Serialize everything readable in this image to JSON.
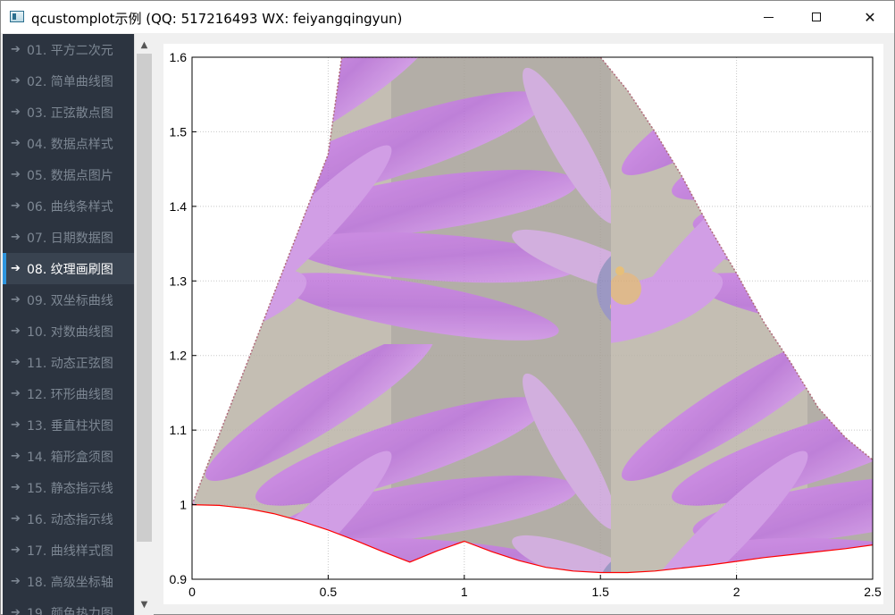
{
  "window": {
    "title": "qcustomplot示例 (QQ: 517216493 WX: feiyangqingyun)",
    "minimize_icon": "minimize-icon",
    "maximize_icon": "maximize-icon",
    "close_icon": "close-icon",
    "close_glyph": "✕"
  },
  "sidebar": {
    "arrow_glyph": "➔",
    "active_index": 7,
    "items": [
      {
        "label": "01. 平方二次元"
      },
      {
        "label": "02. 简单曲线图"
      },
      {
        "label": "03. 正弦散点图"
      },
      {
        "label": "04. 数据点样式"
      },
      {
        "label": "05. 数据点图片"
      },
      {
        "label": "06. 曲线条样式"
      },
      {
        "label": "07. 日期数据图"
      },
      {
        "label": "08. 纹理画刷图"
      },
      {
        "label": "09. 双坐标曲线"
      },
      {
        "label": "10. 对数曲线图"
      },
      {
        "label": "11. 动态正弦图"
      },
      {
        "label": "12. 环形曲线图"
      },
      {
        "label": "13. 垂直柱状图"
      },
      {
        "label": "14. 箱形盒须图"
      },
      {
        "label": "15. 静态指示线"
      },
      {
        "label": "16. 动态指示线"
      },
      {
        "label": "17. 曲线样式图"
      },
      {
        "label": "18. 高级坐标轴"
      },
      {
        "label": "19. 颜色热力图"
      }
    ]
  },
  "scrollbar": {
    "up_glyph": "▲",
    "down_glyph": "▼"
  },
  "chart_data": {
    "type": "area",
    "xlim": [
      0,
      2.5
    ],
    "ylim": [
      0.9,
      1.6
    ],
    "x_ticks": [
      "0",
      "0.5",
      "1",
      "1.5",
      "2",
      "2.5"
    ],
    "y_ticks": [
      "0.9",
      "1",
      "1.1",
      "1.2",
      "1.3",
      "1.4",
      "1.5",
      "1.6"
    ],
    "grid": true,
    "fill": "texture-brush",
    "series": [
      {
        "color": "#ff0000",
        "x": [
          0,
          0.1,
          0.2,
          0.3,
          0.4,
          0.5,
          0.6,
          0.7,
          0.8,
          0.9,
          1.0,
          1.1,
          1.2,
          1.3,
          1.4,
          1.5,
          1.6,
          1.7,
          1.8,
          1.9,
          2.0,
          2.1,
          2.2,
          2.3,
          2.4,
          2.5
        ],
        "y": [
          1.0,
          0.999,
          0.995,
          0.988,
          0.978,
          0.966,
          0.952,
          0.937,
          0.923,
          0.938,
          0.951,
          0.937,
          0.925,
          0.916,
          0.911,
          0.909,
          0.909,
          0.911,
          0.915,
          0.919,
          0.924,
          0.929,
          0.933,
          0.937,
          0.941,
          0.946
        ]
      },
      {
        "color": "#b06a7a",
        "x": [
          0,
          0.05,
          0.1,
          0.15,
          0.2,
          0.25,
          0.3,
          0.35,
          0.4,
          0.45,
          0.5,
          0.55,
          1.5,
          1.6,
          1.7,
          1.8,
          1.9,
          2.0,
          2.1,
          2.2,
          2.3,
          2.4,
          2.5
        ],
        "y": [
          1.0,
          1.047,
          1.094,
          1.141,
          1.188,
          1.235,
          1.282,
          1.329,
          1.376,
          1.423,
          1.47,
          1.6,
          1.6,
          1.555,
          1.5,
          1.44,
          1.372,
          1.31,
          1.245,
          1.19,
          1.13,
          1.09,
          1.06
        ]
      }
    ]
  }
}
